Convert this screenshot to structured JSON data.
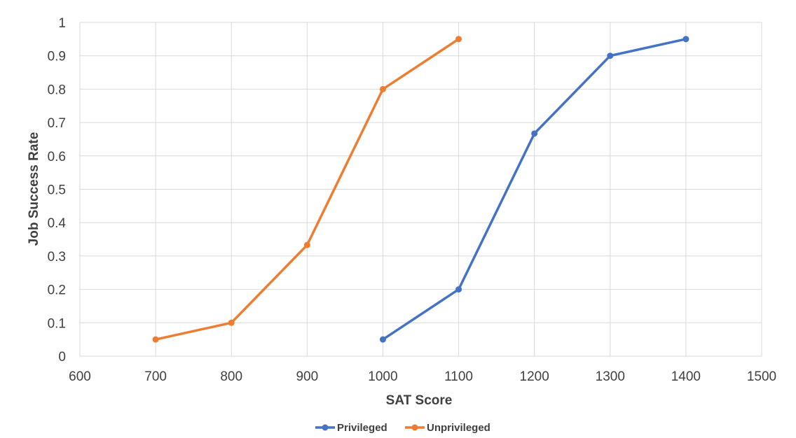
{
  "chart_data": {
    "type": "scatter",
    "title": "",
    "xlabel": "SAT Score",
    "ylabel": "Job Success Rate",
    "xlim": [
      600,
      1500
    ],
    "ylim": [
      0,
      1
    ],
    "x_ticks": [
      600,
      700,
      800,
      900,
      1000,
      1100,
      1200,
      1300,
      1400,
      1500
    ],
    "y_ticks": [
      0,
      0.1,
      0.2,
      0.3,
      0.4,
      0.5,
      0.6,
      0.7,
      0.8,
      0.9,
      1
    ],
    "grid": true,
    "legend_position": "bottom",
    "series": [
      {
        "name": "Privileged",
        "color": "#4472c4",
        "x": [
          1000,
          1100,
          1200,
          1300,
          1400
        ],
        "y": [
          0.05,
          0.2,
          0.667,
          0.9,
          0.95
        ]
      },
      {
        "name": "Unprivileged",
        "color": "#ed7d31",
        "x": [
          700,
          800,
          900,
          1000,
          1100
        ],
        "y": [
          0.05,
          0.1,
          0.333,
          0.8,
          0.95
        ]
      }
    ]
  }
}
